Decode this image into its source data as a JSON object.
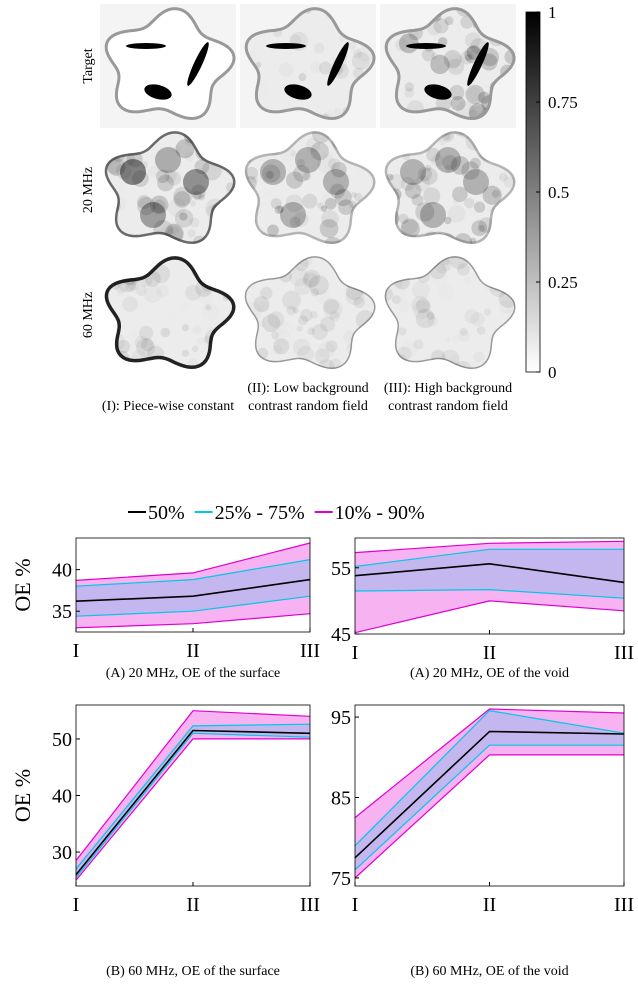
{
  "figure": {
    "row_labels": [
      "Target",
      "20 MHz",
      "60 MHz"
    ],
    "column_captions": [
      "(I): Piece-wise constant",
      "(II): Low background contrast random field",
      "(III): High background contrast random field"
    ],
    "colorbar": {
      "lim": [
        0,
        1
      ],
      "ticks": [
        0,
        0.25,
        0.5,
        0.75,
        1
      ]
    }
  },
  "legend": [
    {
      "name": "50%",
      "color": "#000000"
    },
    {
      "name": "25% - 75%",
      "color": "#00c8e6"
    },
    {
      "name": "10% - 90%",
      "color": "#e000d0"
    }
  ],
  "chart_data": [
    {
      "type": "band-line",
      "caption": "(A) 20 MHz, OE of the surface",
      "ylabel": "OE %",
      "categories": [
        "I",
        "II",
        "III"
      ],
      "ylim": [
        32.5,
        43.8
      ],
      "yticks": [
        35,
        40
      ],
      "series": [
        {
          "values": [
            36.2,
            36.8,
            38.8
          ]
        },
        {
          "lower": [
            34.4,
            35.0,
            36.8
          ],
          "upper": [
            38.0,
            38.8,
            41.2
          ]
        },
        {
          "lower": [
            33.0,
            33.5,
            34.7
          ],
          "upper": [
            38.7,
            39.6,
            43.2
          ]
        }
      ]
    },
    {
      "type": "band-line",
      "caption": "(A) 20 MHz, OE of the void",
      "categories": [
        "I",
        "II",
        "III"
      ],
      "ylim": [
        45,
        59.5
      ],
      "yticks": [
        45,
        55
      ],
      "series": [
        {
          "values": [
            53.8,
            55.6,
            52.8
          ]
        },
        {
          "lower": [
            51.5,
            51.7,
            50.4
          ],
          "upper": [
            55.2,
            57.8,
            57.8
          ]
        },
        {
          "lower": [
            45.2,
            50.0,
            48.5
          ],
          "upper": [
            57.3,
            58.7,
            59.0
          ]
        }
      ]
    },
    {
      "type": "band-line",
      "caption": "(B) 60 MHz, OE of the surface",
      "ylabel": "OE %",
      "categories": [
        "I",
        "II",
        "III"
      ],
      "ylim": [
        24,
        56
      ],
      "yticks": [
        30,
        40,
        50
      ],
      "series": [
        {
          "values": [
            26.0,
            51.5,
            51.0
          ]
        },
        {
          "lower": [
            25.5,
            51.0,
            50.3
          ],
          "upper": [
            27.0,
            52.3,
            52.6
          ]
        },
        {
          "lower": [
            25.0,
            50.0,
            50.0
          ],
          "upper": [
            28.5,
            55.0,
            54.0
          ]
        }
      ]
    },
    {
      "type": "band-line",
      "caption": "(B) 60 MHz, OE of the void",
      "categories": [
        "I",
        "II",
        "III"
      ],
      "ylim": [
        74,
        96.5
      ],
      "yticks": [
        75,
        85,
        95
      ],
      "series": [
        {
          "values": [
            77.5,
            93.2,
            92.9
          ]
        },
        {
          "lower": [
            76.0,
            91.5,
            91.5
          ],
          "upper": [
            79.0,
            95.8,
            93.0
          ]
        },
        {
          "lower": [
            75.0,
            90.3,
            90.3
          ],
          "upper": [
            82.5,
            96.0,
            95.5
          ]
        }
      ]
    }
  ]
}
